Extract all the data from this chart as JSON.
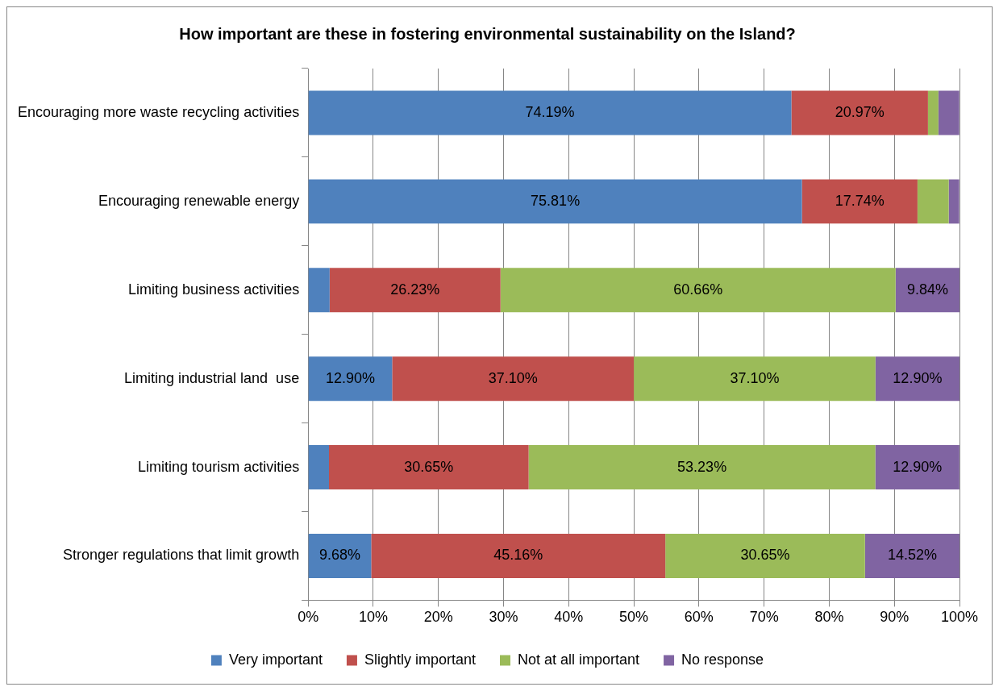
{
  "chart_data": {
    "type": "bar",
    "orientation": "horizontal",
    "stacked": true,
    "title": "How important are these in fostering environmental sustainability on the Island?",
    "categories": [
      "Encouraging more waste recycling activities",
      "Encouraging renewable energy",
      "Limiting business activities",
      "Limiting industrial land  use",
      "Limiting tourism activities",
      "Stronger regulations that limit growth"
    ],
    "series": [
      {
        "name": "Very important",
        "color": "#4f81bd",
        "values": [
          74.19,
          75.81,
          3.3,
          12.9,
          3.2,
          9.68
        ],
        "value_labels": [
          "74.19%",
          "75.81%",
          null,
          "12.90%",
          null,
          "9.68%"
        ]
      },
      {
        "name": "Slightly important",
        "color": "#c0504d",
        "values": [
          20.97,
          17.74,
          26.23,
          37.1,
          30.65,
          45.16
        ],
        "value_labels": [
          "20.97%",
          "17.74%",
          "26.23%",
          "37.10%",
          "30.65%",
          "45.16%"
        ]
      },
      {
        "name": "Not at all important",
        "color": "#9bbb59",
        "values": [
          1.6,
          4.8,
          60.66,
          37.1,
          53.23,
          30.65
        ],
        "value_labels": [
          null,
          null,
          "60.66%",
          "37.10%",
          "53.23%",
          "30.65%"
        ]
      },
      {
        "name": "No response",
        "color": "#8064a2",
        "values": [
          3.2,
          1.6,
          9.84,
          12.9,
          12.9,
          14.52
        ],
        "value_labels": [
          null,
          null,
          "9.84%",
          "12.90%",
          "12.90%",
          "14.52%"
        ]
      }
    ],
    "xlim": [
      0,
      100
    ],
    "xticks": [
      {
        "value": 0,
        "label": "0%"
      },
      {
        "value": 10,
        "label": "10%"
      },
      {
        "value": 20,
        "label": "20%"
      },
      {
        "value": 30,
        "label": "30%"
      },
      {
        "value": 40,
        "label": "40%"
      },
      {
        "value": 50,
        "label": "50%"
      },
      {
        "value": 60,
        "label": "60%"
      },
      {
        "value": 70,
        "label": "70%"
      },
      {
        "value": 80,
        "label": "80%"
      },
      {
        "value": 90,
        "label": "90%"
      },
      {
        "value": 100,
        "label": "100%"
      }
    ],
    "grid": "x",
    "legend": "bottom"
  }
}
